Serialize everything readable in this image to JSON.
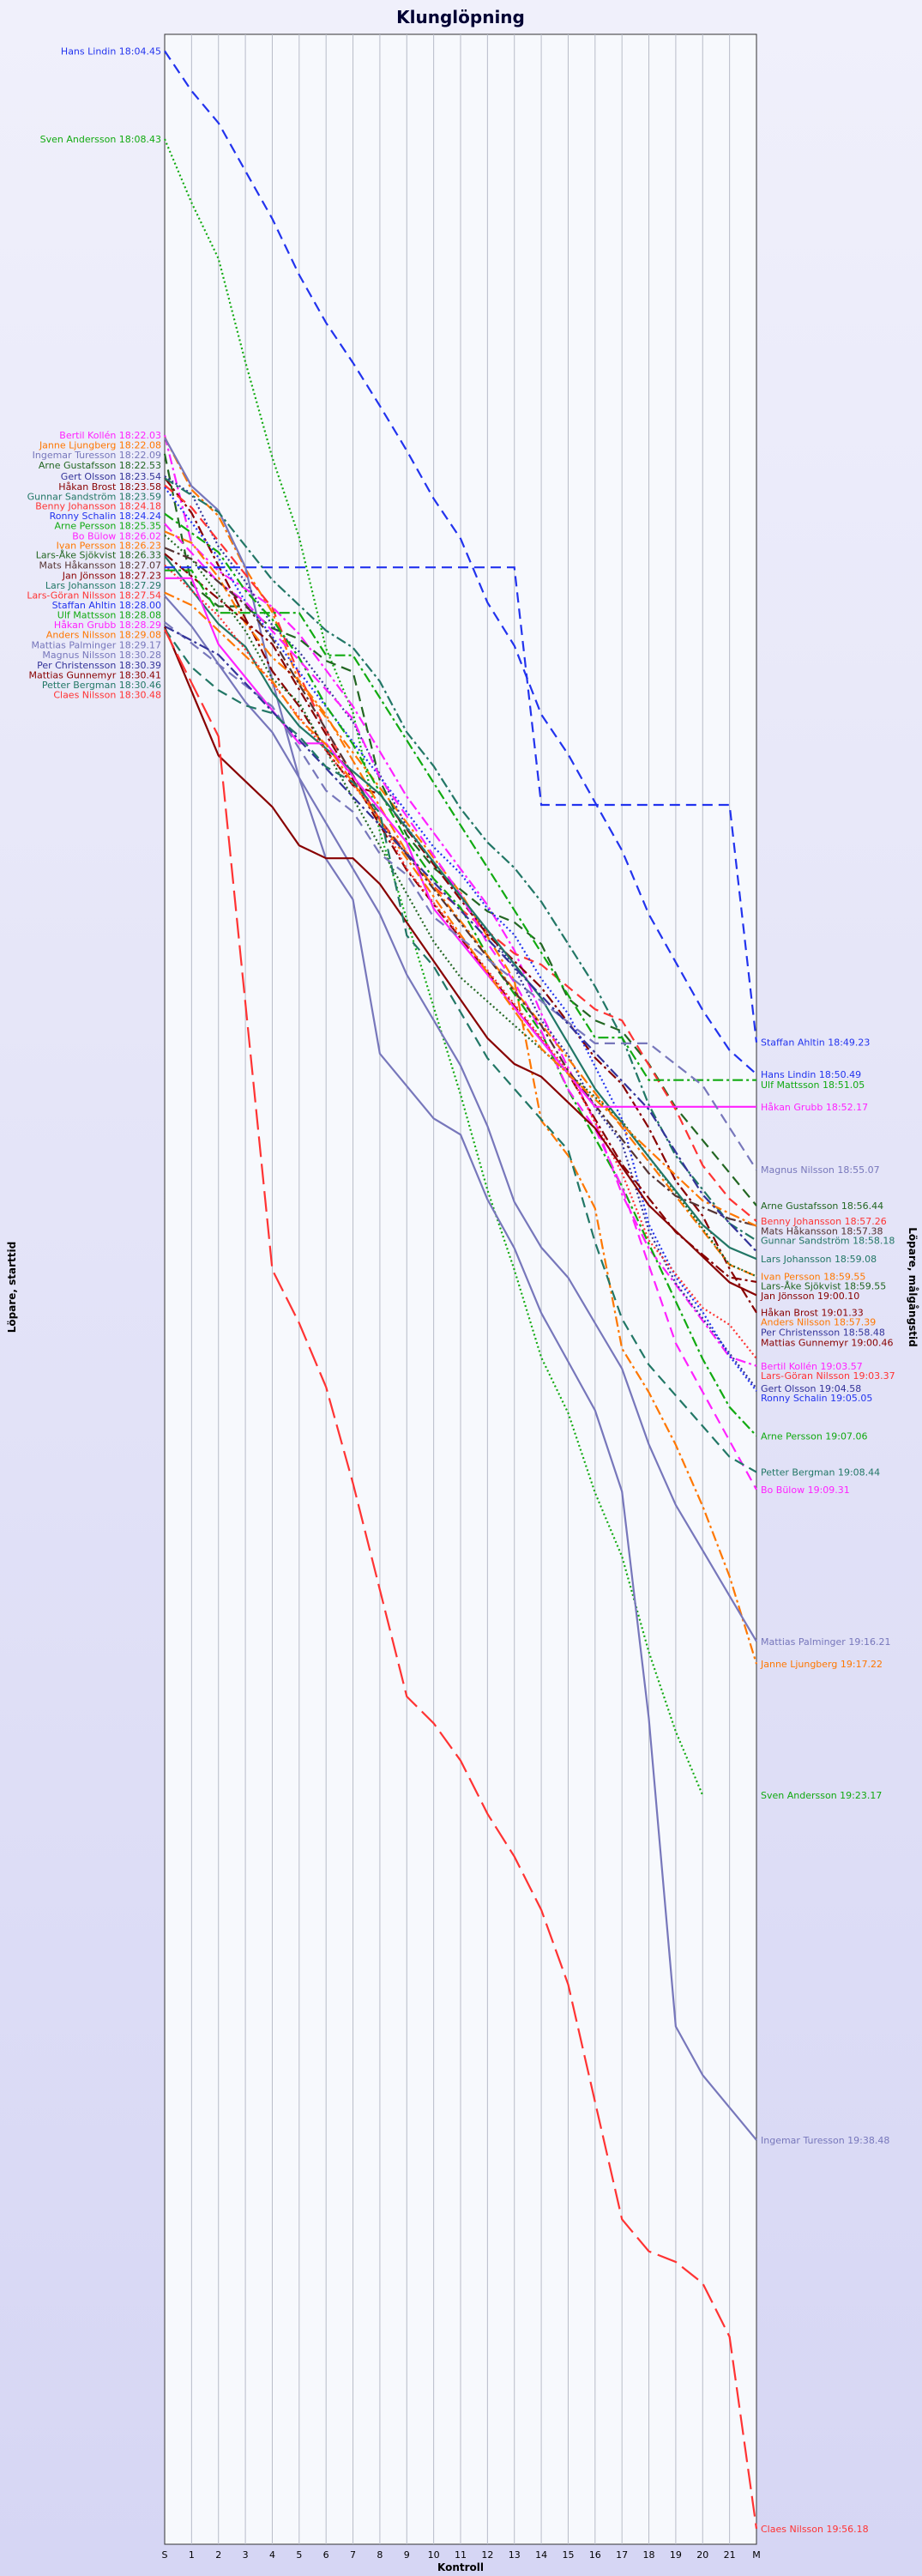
{
  "chart_data": {
    "type": "line",
    "title": "Klunglöpning",
    "xlabel": "Kontroll",
    "ylabel_left": "Löpare, starttid",
    "ylabel_right": "Löpare, målgångstid",
    "x_ticks": [
      "S",
      "1",
      "2",
      "3",
      "4",
      "5",
      "6",
      "7",
      "8",
      "9",
      "10",
      "11",
      "12",
      "13",
      "14",
      "15",
      "16",
      "17",
      "18",
      "19",
      "20",
      "21",
      "M"
    ],
    "y_range_hms": [
      "18:04:00",
      "19:57:00"
    ],
    "grid": "vertical lines at each control",
    "series": [
      {
        "name": "Hans Lindin",
        "start": "18:04.45",
        "finish": "18:50.49",
        "color": "#2233ee",
        "dash": "12,7",
        "values": [
          0,
          25,
          45,
          75,
          105,
          140,
          170,
          195,
          222,
          250,
          280,
          305,
          345,
          372,
          415,
          440,
          470,
          500,
          540,
          570,
          600,
          625,
          640
        ]
      },
      {
        "name": "Sven Andersson",
        "start": "18:08.43",
        "finish": "19:23.17",
        "color": "#11aa11",
        "dash": "2,3",
        "values": [
          0,
          40,
          75,
          140,
          200,
          250,
          320,
          360,
          435,
          490,
          545,
          600,
          660,
          710,
          765,
          800,
          850,
          890,
          950,
          1000,
          1040,
          null,
          null
        ]
      },
      {
        "name": "Bertil Kollén",
        "start": "18:22.03",
        "finish": "19:03.57",
        "color": "#ff22ff",
        "dash": "12,4,3,4",
        "values": [
          0,
          60,
          75,
          85,
          95,
          110,
          130,
          150,
          175,
          200,
          220,
          240,
          260,
          285,
          320,
          350,
          380,
          420,
          450,
          470,
          490,
          510,
          515
        ]
      },
      {
        "name": "Janne Ljungberg",
        "start": "18:22.08",
        "finish": "19:17.22",
        "color": "#ff7700",
        "dash": "12,4,3,4",
        "values": [
          0,
          30,
          45,
          75,
          100,
          140,
          160,
          180,
          200,
          220,
          240,
          260,
          285,
          310,
          390,
          410,
          440,
          520,
          545,
          575,
          610,
          650,
          700
        ]
      },
      {
        "name": "Ingemar Turesson",
        "start": "18:22.09",
        "finish": "19:38.48",
        "color": "#7777bb",
        "dash": "",
        "values": [
          0,
          30,
          45,
          80,
          150,
          210,
          260,
          285,
          380,
          400,
          420,
          430,
          470,
          500,
          540,
          570,
          600,
          650,
          790,
          980,
          1010,
          1030,
          1050
        ]
      },
      {
        "name": "Arne Gustafsson",
        "start": "18:22.53",
        "finish": "18:56.44",
        "color": "#226622",
        "dash": "12,7",
        "values": [
          0,
          60,
          70,
          70,
          80,
          85,
          95,
          100,
          150,
          175,
          190,
          200,
          210,
          215,
          225,
          250,
          260,
          265,
          280,
          300,
          315,
          330,
          345
        ]
      },
      {
        "name": "Gert Olsson",
        "start": "18:23.54",
        "finish": "19:04.58",
        "color": "#333399",
        "dash": "2,3",
        "values": [
          0,
          10,
          40,
          60,
          85,
          100,
          120,
          140,
          170,
          200,
          220,
          240,
          260,
          280,
          310,
          330,
          360,
          380,
          430,
          460,
          480,
          500,
          520
        ]
      },
      {
        "name": "Håkan Brost",
        "start": "18:23.58",
        "finish": "19:01.33",
        "color": "#880000",
        "dash": "12,4,3,4",
        "values": [
          0,
          20,
          50,
          80,
          110,
          130,
          155,
          175,
          180,
          200,
          220,
          240,
          260,
          275,
          290,
          310,
          330,
          345,
          370,
          400,
          420,
          450,
          475
        ]
      },
      {
        "name": "Gunnar Sandström",
        "start": "18:23.59",
        "finish": "18:58.18",
        "color": "#227766",
        "dash": "12,4,3,4",
        "values": [
          0,
          10,
          20,
          40,
          60,
          75,
          90,
          100,
          120,
          150,
          170,
          195,
          215,
          230,
          250,
          275,
          300,
          330,
          370,
          400,
          420,
          440,
          450
        ]
      },
      {
        "name": "Benny Johansson",
        "start": "18:24.18",
        "finish": "18:57.26",
        "color": "#ff3333",
        "dash": "12,7",
        "values": [
          0,
          10,
          25,
          40,
          55,
          85,
          110,
          130,
          150,
          165,
          180,
          190,
          200,
          210,
          215,
          225,
          235,
          240,
          260,
          280,
          305,
          320,
          330
        ]
      },
      {
        "name": "Ronny Schalin",
        "start": "18:24.24",
        "finish": "19:05.05",
        "color": "#2233ee",
        "dash": "2,3",
        "values": [
          0,
          20,
          40,
          65,
          85,
          105,
          125,
          145,
          165,
          185,
          205,
          220,
          240,
          255,
          280,
          300,
          330,
          360,
          420,
          450,
          470,
          495,
          515
        ]
      },
      {
        "name": "Arne Persson",
        "start": "18:25.35",
        "finish": "19:07.06",
        "color": "#11aa11",
        "dash": "12,4,3,4",
        "values": [
          0,
          10,
          20,
          40,
          55,
          75,
          100,
          120,
          145,
          170,
          190,
          205,
          230,
          250,
          270,
          300,
          325,
          350,
          380,
          410,
          440,
          465,
          480
        ]
      },
      {
        "name": "Bo Bülow",
        "start": "18:26.02",
        "finish": "19:09.31",
        "color": "#ff22ff",
        "dash": "12,7",
        "values": [
          0,
          15,
          30,
          40,
          55,
          70,
          85,
          100,
          130,
          150,
          170,
          190,
          215,
          235,
          260,
          290,
          310,
          340,
          380,
          420,
          445,
          470,
          495
        ]
      },
      {
        "name": "Ivan Persson",
        "start": "18:26.23",
        "finish": "18:59.55",
        "color": "#ff7700",
        "dash": "12,4,3,4",
        "values": [
          0,
          5,
          20,
          40,
          55,
          65,
          80,
          100,
          120,
          140,
          155,
          170,
          185,
          200,
          215,
          230,
          245,
          260,
          275,
          290,
          305,
          320,
          325
        ]
      },
      {
        "name": "Lars-Åke Sjökvist",
        "start": "18:26.33",
        "finish": "18:59.55",
        "color": "#226622",
        "dash": "2,3",
        "values": [
          0,
          10,
          25,
          40,
          60,
          70,
          90,
          110,
          130,
          150,
          170,
          185,
          195,
          205,
          215,
          225,
          235,
          245,
          260,
          275,
          290,
          305,
          310
        ]
      },
      {
        "name": "Mats Håkansson",
        "start": "18:27.07",
        "finish": "18:57.38",
        "color": "#553333",
        "dash": "12,4,3,4",
        "values": [
          0,
          5,
          15,
          25,
          40,
          60,
          80,
          100,
          120,
          135,
          150,
          165,
          180,
          195,
          210,
          230,
          245,
          260,
          275,
          285,
          290,
          295,
          298
        ]
      },
      {
        "name": "Jan Jönsson",
        "start": "18:27.23",
        "finish": "19:00.10",
        "color": "#880000",
        "dash": "12,4,3,4",
        "values": [
          0,
          10,
          20,
          30,
          40,
          60,
          80,
          100,
          120,
          140,
          155,
          170,
          185,
          200,
          215,
          230,
          250,
          270,
          285,
          300,
          310,
          320,
          322
        ]
      },
      {
        "name": "Lars Johansson",
        "start": "18:27.29",
        "finish": "18:59.08",
        "color": "#227766",
        "dash": "",
        "values": [
          0,
          15,
          30,
          40,
          60,
          75,
          85,
          95,
          105,
          120,
          135,
          150,
          165,
          180,
          195,
          215,
          235,
          250,
          265,
          280,
          295,
          305,
          310
        ]
      },
      {
        "name": "Lars-Göran Nilsson",
        "start": "18:27.54",
        "finish": "19:03.37",
        "color": "#ff3333",
        "dash": "2,3",
        "values": [
          0,
          15,
          30,
          50,
          70,
          90,
          110,
          130,
          150,
          180,
          200,
          220,
          240,
          260,
          280,
          300,
          330,
          360,
          400,
          420,
          440,
          450,
          470
        ]
      },
      {
        "name": "Staffan Ahltin",
        "start": "18:28.00",
        "finish": "18:49.23",
        "color": "#2233ee",
        "dash": "12,7",
        "values": [
          0,
          0,
          0,
          0,
          0,
          0,
          0,
          0,
          0,
          0,
          0,
          0,
          0,
          0,
          5,
          5,
          5,
          5,
          5,
          5,
          5,
          5,
          10
        ]
      },
      {
        "name": "Ulf Mattsson",
        "start": "18:28.08",
        "finish": "18:51.05",
        "color": "#11aa11",
        "dash": "12,4,3,4",
        "values": [
          0,
          0,
          5,
          5,
          5,
          5,
          10,
          10,
          15,
          20,
          25,
          30,
          35,
          40,
          45,
          50,
          55,
          55,
          60,
          60,
          60,
          60,
          60
        ]
      },
      {
        "name": "Håkan Grubb",
        "start": "18:28.29",
        "finish": "18:52.17",
        "color": "#ff22ff",
        "dash": "",
        "values": [
          0,
          0,
          10,
          15,
          20,
          25,
          25,
          30,
          35,
          40,
          50,
          55,
          60,
          65,
          70,
          75,
          80,
          80,
          80,
          80,
          80,
          80,
          80
        ]
      },
      {
        "name": "Anders Nilsson",
        "start": "18:29.08",
        "finish": "18:57.39",
        "color": "#ff7700",
        "dash": "12,4,3,4",
        "values": [
          0,
          5,
          15,
          25,
          35,
          50,
          60,
          75,
          90,
          105,
          120,
          135,
          150,
          165,
          180,
          190,
          200,
          210,
          220,
          230,
          240,
          245,
          250
        ]
      },
      {
        "name": "Mattias Palminger",
        "start": "18:29.17",
        "finish": "19:16.21",
        "color": "#7777bb",
        "dash": "",
        "values": [
          0,
          20,
          45,
          70,
          90,
          120,
          150,
          180,
          210,
          250,
          280,
          310,
          350,
          400,
          430,
          450,
          480,
          510,
          560,
          600,
          630,
          660,
          690
        ]
      },
      {
        "name": "Magnus Nilsson",
        "start": "18:30.28",
        "finish": "18:55.07",
        "color": "#7777bb",
        "dash": "12,7",
        "values": [
          0,
          5,
          10,
          15,
          20,
          30,
          40,
          45,
          55,
          60,
          70,
          75,
          80,
          85,
          90,
          95,
          100,
          100,
          100,
          105,
          110,
          120,
          130
        ]
      },
      {
        "name": "Per Christensson",
        "start": "18:30.39",
        "finish": "18:58.48",
        "color": "#333399",
        "dash": "12,4,3,4",
        "values": [
          0,
          5,
          10,
          20,
          30,
          40,
          50,
          60,
          70,
          80,
          90,
          100,
          110,
          120,
          130,
          140,
          150,
          160,
          170,
          185,
          200,
          210,
          220
        ]
      },
      {
        "name": "Mattias Gunnemyr",
        "start": "18:30.41",
        "finish": "19:00.46",
        "color": "#880000",
        "dash": "",
        "values": [
          0,
          25,
          50,
          60,
          70,
          85,
          90,
          90,
          100,
          115,
          130,
          145,
          160,
          170,
          175,
          185,
          195,
          210,
          225,
          235,
          245,
          255,
          260
        ]
      },
      {
        "name": "Petter Bergman",
        "start": "18:30.46",
        "finish": "19:08.44",
        "color": "#227766",
        "dash": "12,7",
        "values": [
          0,
          25,
          40,
          50,
          55,
          70,
          90,
          100,
          120,
          200,
          220,
          250,
          280,
          300,
          320,
          340,
          400,
          450,
          480,
          500,
          520,
          540,
          550
        ]
      },
      {
        "name": "Claes Nilsson",
        "start": "18:30.48",
        "finish": "19:56.18",
        "color": "#ff3333",
        "dash": "24,8",
        "values": [
          0,
          50,
          100,
          350,
          600,
          650,
          710,
          800,
          900,
          1000,
          1025,
          1060,
          1110,
          1150,
          1200,
          1270,
          1380,
          1490,
          1520,
          1530,
          1550,
          1600,
          1780
        ]
      }
    ]
  }
}
